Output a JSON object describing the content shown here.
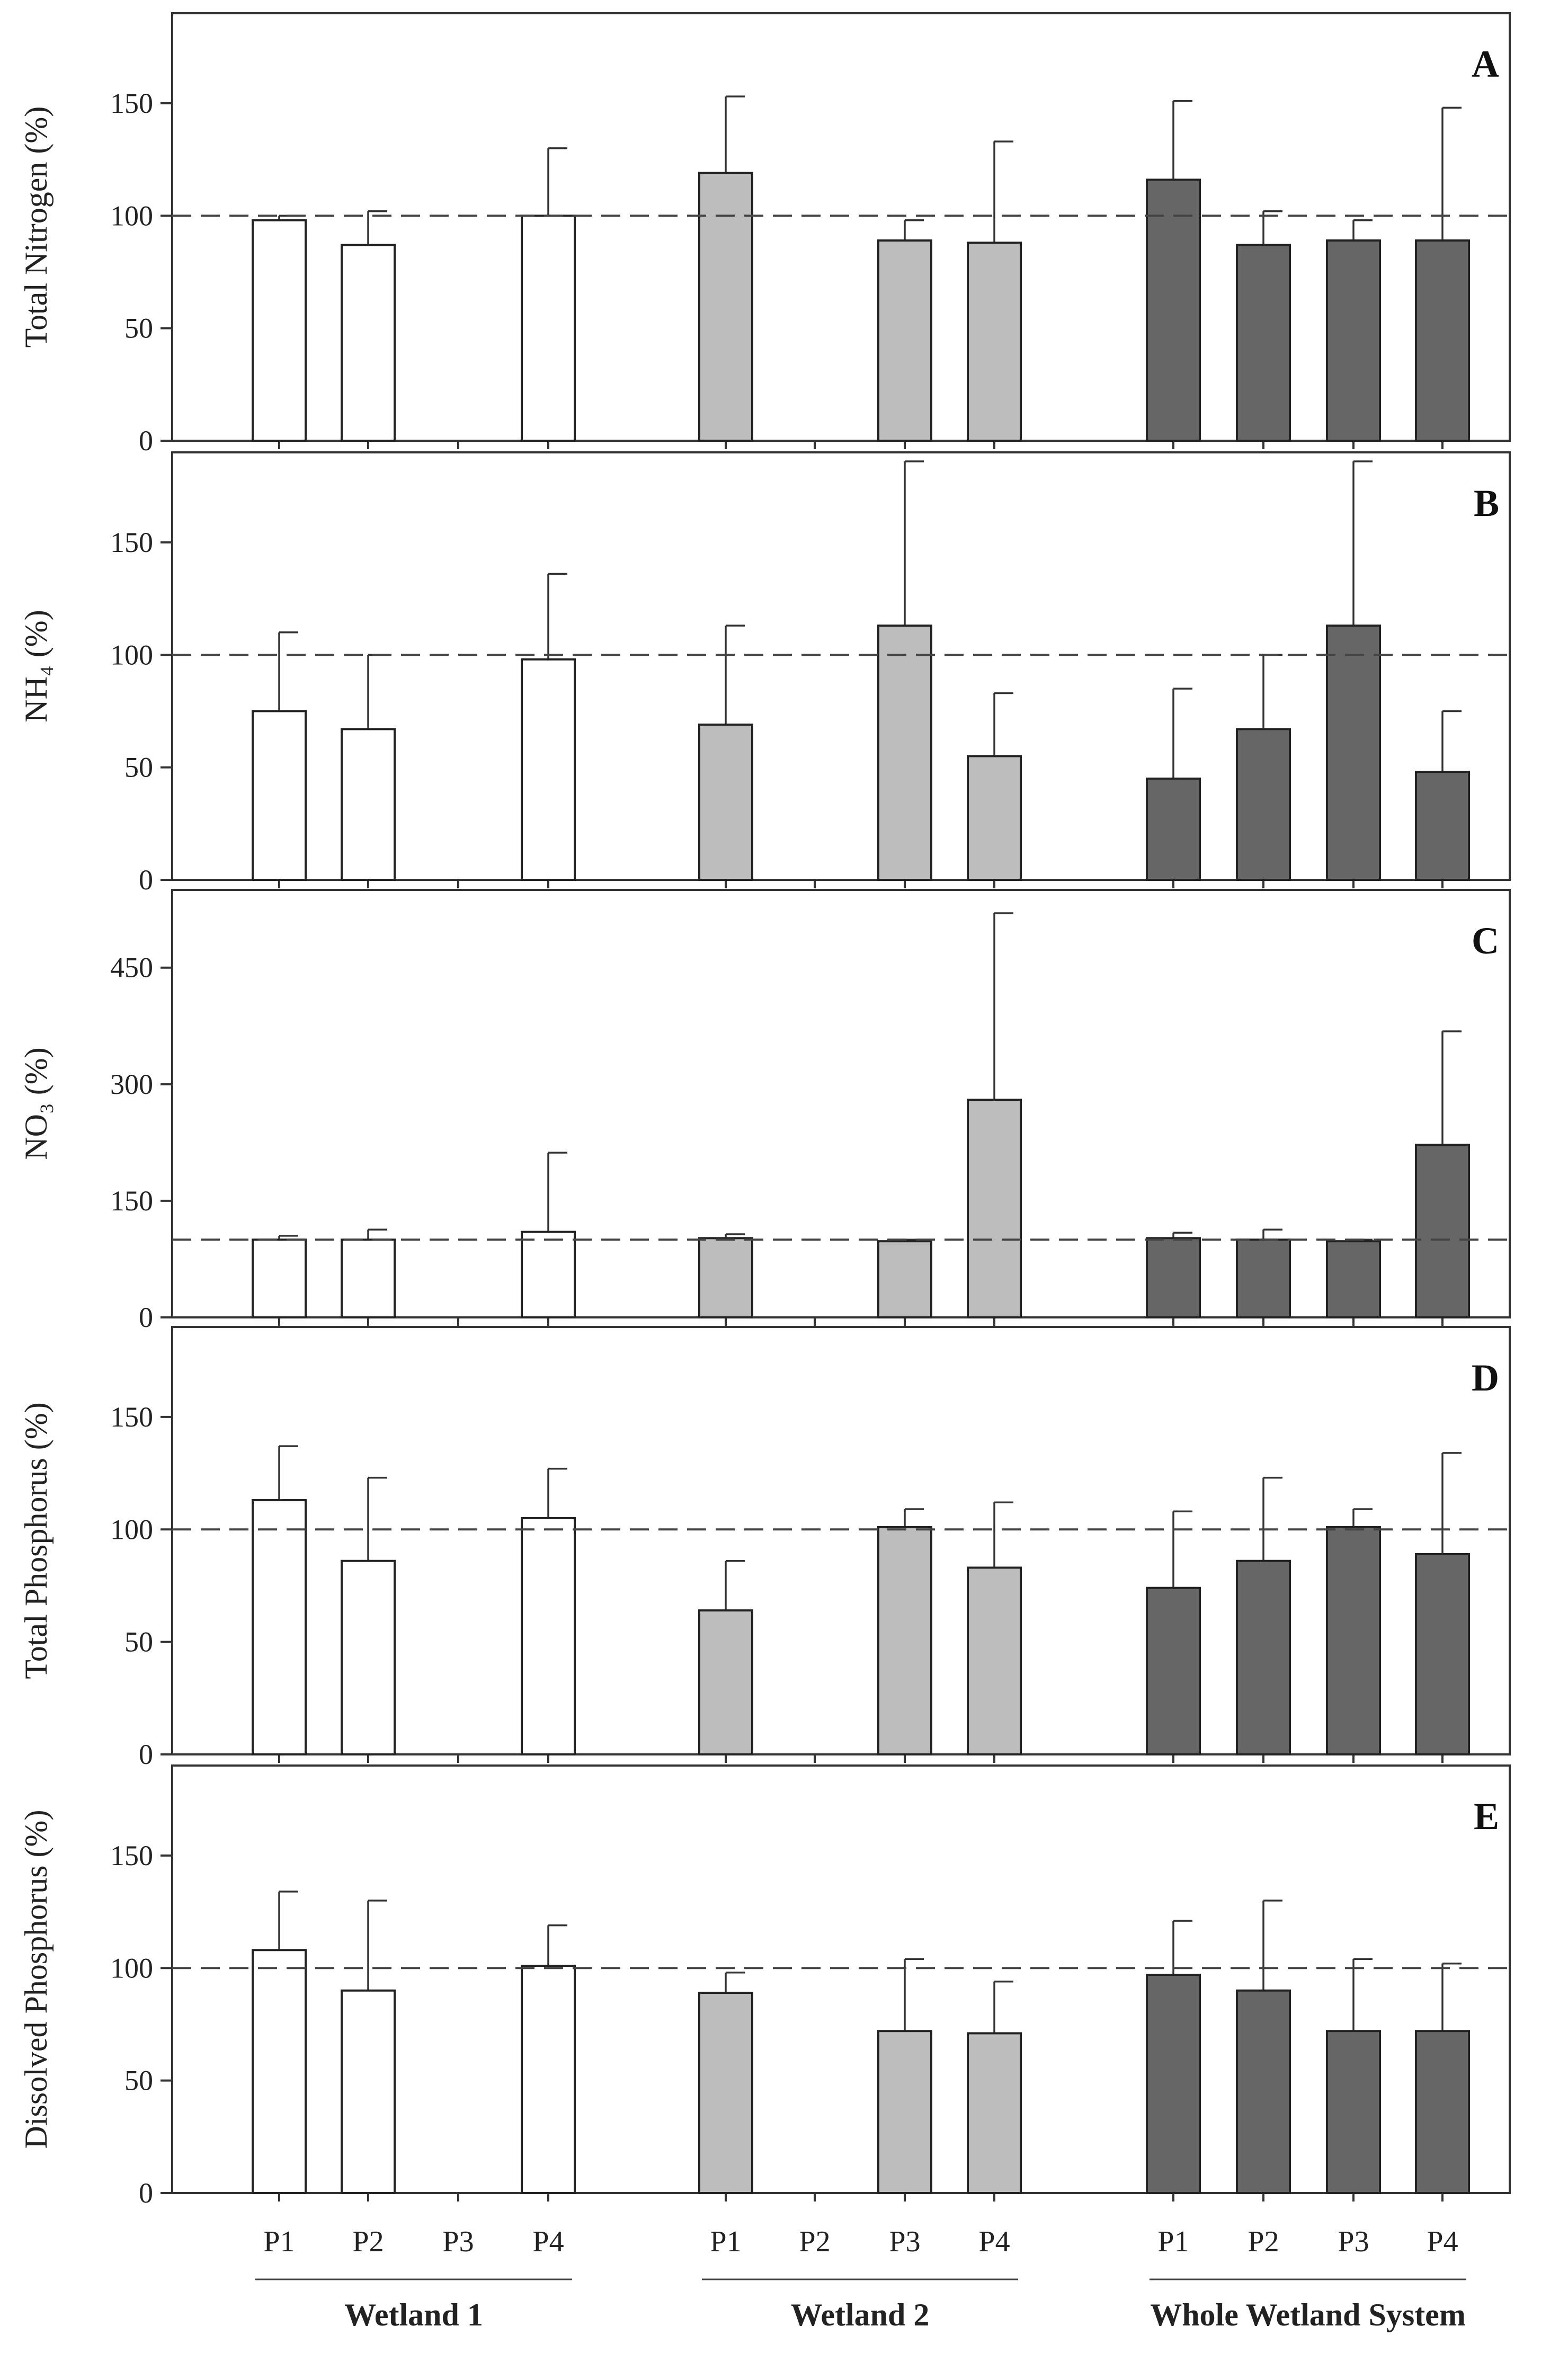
{
  "chart_data": {
    "type": "bar",
    "layout": "stacked-panels",
    "colors": {
      "Wetland 1": "#ffffff",
      "Wetland 2": "#bdbdbd",
      "Whole Wetland System": "#666666"
    },
    "groups": [
      {
        "name": "Wetland 1",
        "categories": [
          "P1",
          "P2",
          "P3",
          "P4"
        ]
      },
      {
        "name": "Wetland 2",
        "categories": [
          "P1",
          "P2",
          "P3",
          "P4"
        ]
      },
      {
        "name": "Whole Wetland System",
        "categories": [
          "P1",
          "P2",
          "P3",
          "P4"
        ]
      }
    ],
    "reference_line": {
      "value": 100,
      "style": "dashed"
    },
    "panels": [
      {
        "letter": "A",
        "ylabel": "Total Nitrogen (%)",
        "ylim": [
          0,
          190
        ],
        "yticks": [
          0,
          50,
          100,
          150
        ],
        "series": [
          {
            "name": "Wetland 1",
            "values": [
              98,
              87,
              null,
              100
            ],
            "errors": [
              2,
              15,
              null,
              30
            ]
          },
          {
            "name": "Wetland 2",
            "values": [
              119,
              null,
              89,
              88
            ],
            "errors": [
              34,
              null,
              9,
              45
            ]
          },
          {
            "name": "Whole Wetland System",
            "values": [
              116,
              87,
              89,
              89
            ],
            "errors": [
              35,
              15,
              9,
              59
            ]
          }
        ]
      },
      {
        "letter": "B",
        "ylabel": "NH₄ (%)",
        "ylim": [
          0,
          190
        ],
        "yticks": [
          0,
          50,
          100,
          150
        ],
        "series": [
          {
            "name": "Wetland 1",
            "values": [
              75,
              67,
              null,
              98
            ],
            "errors": [
              35,
              33,
              null,
              38
            ]
          },
          {
            "name": "Wetland 2",
            "values": [
              69,
              null,
              113,
              55
            ],
            "errors": [
              44,
              null,
              73,
              28
            ]
          },
          {
            "name": "Whole Wetland System",
            "values": [
              45,
              67,
              113,
              48
            ],
            "errors": [
              40,
              33,
              73,
              27
            ]
          }
        ]
      },
      {
        "letter": "C",
        "ylabel": "NO₃ (%)",
        "ylim": [
          0,
          550
        ],
        "yticks": [
          0,
          150,
          300,
          450
        ],
        "series": [
          {
            "name": "Wetland 1",
            "values": [
              100,
              100,
              null,
              110
            ],
            "errors": [
              5,
              13,
              null,
              102
            ]
          },
          {
            "name": "Wetland 2",
            "values": [
              102,
              null,
              98,
              280
            ],
            "errors": [
              5,
              null,
              2,
              240
            ]
          },
          {
            "name": "Whole Wetland System",
            "values": [
              102,
              100,
              98,
              222
            ],
            "errors": [
              7,
              13,
              2,
              146
            ]
          }
        ]
      },
      {
        "letter": "D",
        "ylabel": "Total Phosphorus (%)",
        "ylim": [
          0,
          190
        ],
        "yticks": [
          0,
          50,
          100,
          150
        ],
        "series": [
          {
            "name": "Wetland 1",
            "values": [
              113,
              86,
              null,
              105
            ],
            "errors": [
              24,
              37,
              null,
              22
            ]
          },
          {
            "name": "Wetland 2",
            "values": [
              64,
              null,
              101,
              83
            ],
            "errors": [
              22,
              null,
              8,
              29
            ]
          },
          {
            "name": "Whole Wetland System",
            "values": [
              74,
              86,
              101,
              89
            ],
            "errors": [
              34,
              37,
              8,
              45
            ]
          }
        ]
      },
      {
        "letter": "E",
        "ylabel": "Dissolved Phosphorus (%)",
        "ylim": [
          0,
          190
        ],
        "yticks": [
          0,
          50,
          100,
          150
        ],
        "series": [
          {
            "name": "Wetland 1",
            "values": [
              108,
              90,
              null,
              101
            ],
            "errors": [
              26,
              40,
              null,
              18
            ]
          },
          {
            "name": "Wetland 2",
            "values": [
              89,
              null,
              72,
              71
            ],
            "errors": [
              9,
              null,
              32,
              23
            ]
          },
          {
            "name": "Whole Wetland System",
            "values": [
              97,
              90,
              72,
              72
            ],
            "errors": [
              24,
              40,
              32,
              30
            ]
          }
        ]
      }
    ]
  }
}
